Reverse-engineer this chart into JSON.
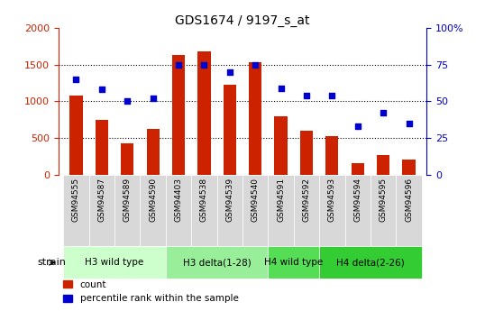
{
  "title": "GDS1674 / 9197_s_at",
  "categories": [
    "GSM94555",
    "GSM94587",
    "GSM94589",
    "GSM94590",
    "GSM94403",
    "GSM94538",
    "GSM94539",
    "GSM94540",
    "GSM94591",
    "GSM94592",
    "GSM94593",
    "GSM94594",
    "GSM94595",
    "GSM94596"
  ],
  "counts": [
    1080,
    750,
    430,
    620,
    1630,
    1680,
    1220,
    1530,
    790,
    600,
    530,
    160,
    270,
    200
  ],
  "percentiles": [
    65,
    58,
    50,
    52,
    75,
    75,
    70,
    75,
    59,
    54,
    54,
    33,
    42,
    35
  ],
  "bar_color": "#cc2200",
  "dot_color": "#0000cc",
  "ylim_left": [
    0,
    2000
  ],
  "ylim_right": [
    0,
    100
  ],
  "yticks_left": [
    0,
    500,
    1000,
    1500,
    2000
  ],
  "yticks_right": [
    0,
    25,
    50,
    75,
    100
  ],
  "ytick_labels_right": [
    "0",
    "25",
    "50",
    "75",
    "100%"
  ],
  "group_defs": [
    {
      "start": 0,
      "end": 3,
      "label": "H3 wild type",
      "color": "#ccffcc"
    },
    {
      "start": 4,
      "end": 7,
      "label": "H3 delta(1-28)",
      "color": "#99ee99"
    },
    {
      "start": 8,
      "end": 9,
      "label": "H4 wild type",
      "color": "#55dd55"
    },
    {
      "start": 10,
      "end": 13,
      "label": "H4 delta(2-26)",
      "color": "#33cc33"
    }
  ],
  "xtick_bg": "#d8d8d8",
  "bg_color": "#ffffff",
  "strain_label": "strain",
  "legend_count_label": "count",
  "legend_percentile_label": "percentile rank within the sample",
  "grid_yticks": [
    500,
    1000,
    1500
  ]
}
